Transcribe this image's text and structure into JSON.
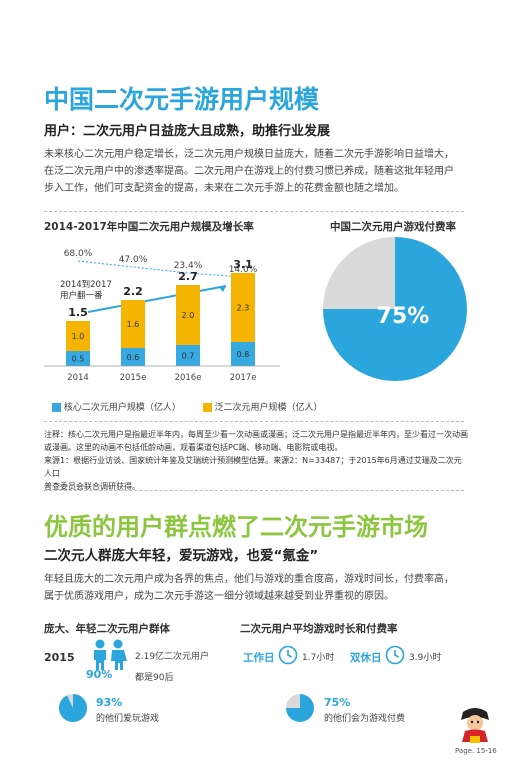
{
  "section1": {
    "title": "中国二次元手游用户规模",
    "subtitle": "用户：二次元用户日益庞大且成熟，助推行业发展",
    "paragraph_lines": [
      "未来核心二次元用户稳定增长，泛二次元用户规模日益庞大，随着二次元手游影响日益增大，",
      "在泛二次元用户中的渗透率提高。二次元用户在游戏上的付费习惯已养成，随着这批年轻用户",
      "步入工作，他们可支配资金的提高，未来在二次元手游上的花费金额也随之增加。"
    ]
  },
  "chart_data": [
    {
      "type": "bar",
      "title": "2014-2017年中国二次元用户规模及增长率",
      "categories": [
        "2014",
        "2015e",
        "2016e",
        "2017e"
      ],
      "series": [
        {
          "name": "核心二次元用户规模（亿人）",
          "values": [
            0.5,
            0.6,
            0.7,
            0.8
          ],
          "color": "#36a9e1"
        },
        {
          "name": "泛二次元用户规模（亿人）",
          "values": [
            1.0,
            1.6,
            2.0,
            2.3
          ],
          "color": "#f4b400"
        }
      ],
      "totals": [
        1.5,
        2.2,
        2.7,
        3.1
      ],
      "growth_rates": [
        "68.0%",
        "47.0%",
        "23.4%",
        "14.0%"
      ],
      "growth_values": [
        68.0,
        47.0,
        23.4,
        14.0
      ],
      "annotation": [
        "2014到2017",
        "用户翻一番"
      ],
      "value_labels": {
        "core": [
          "0.5",
          "0.6",
          "0.7",
          "0.8"
        ],
        "pan": [
          "1.0",
          "1.6",
          "2.0",
          "2.3"
        ],
        "totals": [
          "1.5",
          "2.2",
          "2.7",
          "3.1"
        ]
      }
    },
    {
      "type": "pie",
      "title": "中国二次元用户游戏付费率",
      "values": [
        75,
        25
      ],
      "label": "75%",
      "colors": [
        "#2aa6dd",
        "#d9d9d9"
      ]
    }
  ],
  "notes": {
    "lines": [
      "注释：核心二次元用户是指最近半年内，每周至少看一次动画或漫画；泛二次元用户是指最近半年内，至少看过一次动画",
      "或漫画。这里的动画不包括低龄动画，观看渠道包括PC端、移动端、电影院或电视。",
      "来源1：根据行业访谈、国家统计年鉴及艾瑞统计预测模型估算。来源2：N=33487；于2015年6月通过艾瑞及二次元人口",
      "普查委员会联合调研获得。"
    ]
  },
  "section2": {
    "title": "优质的用户群点燃了二次元手游市场",
    "subtitle": "二次元人群庞大年轻，爱玩游戏，也爱“氪金”",
    "paragraph_lines": [
      "年轻且庞大的二次元用户成为各界的焦点，他们与游戏的重合度高，游戏时间长，付费率高，",
      "属于优质游戏用户，成为二次元手游这一细分领域越来越受到业界重视的原因。"
    ]
  },
  "left_panel": {
    "title": "庞大、年轻二次元用户群体",
    "year": "2015",
    "users_text": "2.19亿二次元用户",
    "pct_young": "90%",
    "young_text": "都是90后",
    "pct_games": "93%",
    "games_text": "的他们爱玩游戏"
  },
  "right_panel": {
    "title": "二次元用户平均游戏时长和付费率",
    "workday_label": "工作日",
    "workday_value": "1.7小时",
    "weekend_label": "双休日",
    "weekend_value": "3.9小时",
    "pct_pay": "75%",
    "pay_text": "的他们会为游戏付费"
  },
  "footer": {
    "page": "Page. 15-16"
  },
  "colors": {
    "accent_blue": "#2aa6dd",
    "accent_green": "#8cc63f",
    "bar_yellow": "#f4b400",
    "bar_blue": "#36a9e1"
  }
}
